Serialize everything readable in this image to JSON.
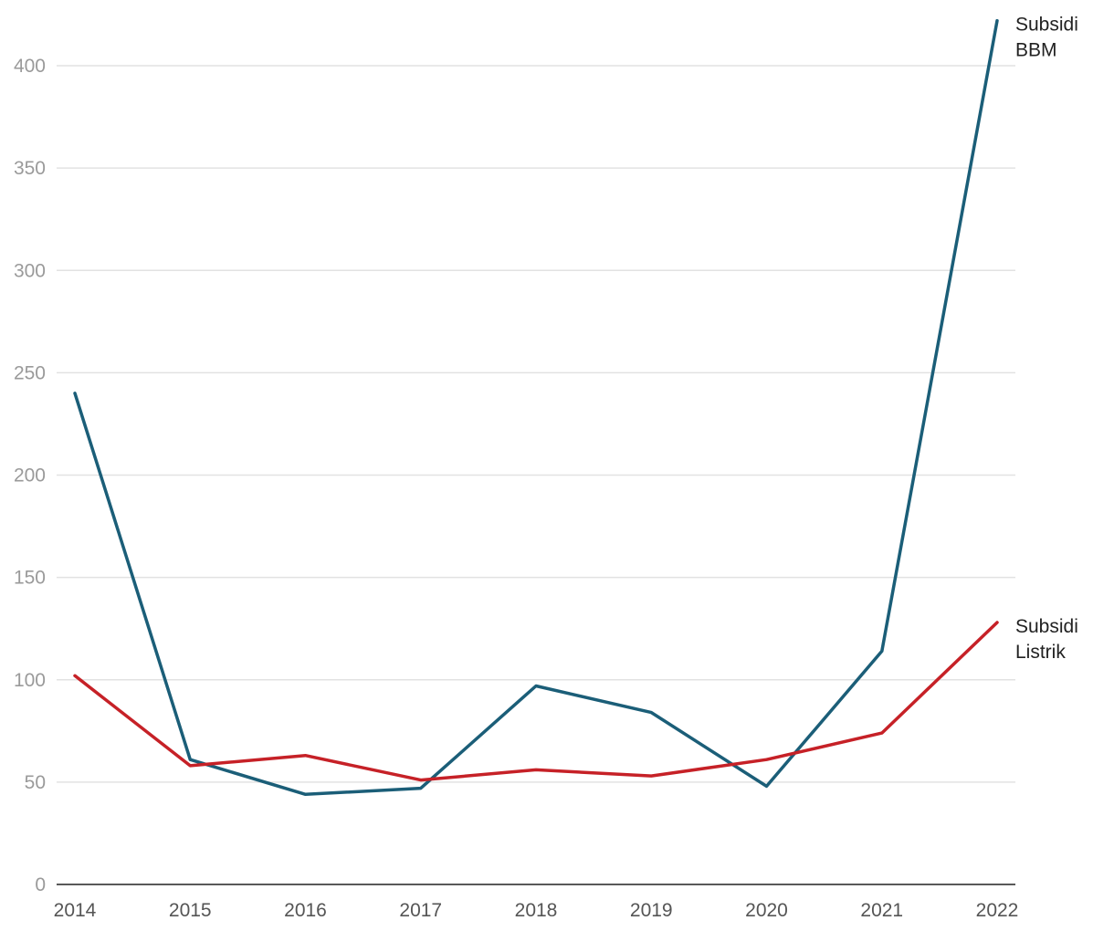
{
  "chart_data": {
    "type": "line",
    "title": "",
    "xlabel": "",
    "ylabel": "",
    "x": [
      "2014",
      "2015",
      "2016",
      "2017",
      "2018",
      "2019",
      "2020",
      "2021",
      "2022"
    ],
    "ylim": [
      0,
      400
    ],
    "yticks": [
      0,
      50,
      100,
      150,
      200,
      250,
      300,
      350,
      400
    ],
    "grid": true,
    "legend": "direct labels at line ends",
    "series": [
      {
        "name": "Subsidi BBM",
        "label_lines": [
          "Subsidi",
          "BBM"
        ],
        "color": "#1b5e78",
        "values": [
          240,
          61,
          44,
          47,
          97,
          84,
          48,
          114,
          422
        ]
      },
      {
        "name": "Subsidi Listrik",
        "label_lines": [
          "Subsidi",
          "Listrik"
        ],
        "color": "#c62127",
        "values": [
          102,
          58,
          63,
          51,
          56,
          53,
          61,
          74,
          128
        ]
      }
    ]
  }
}
